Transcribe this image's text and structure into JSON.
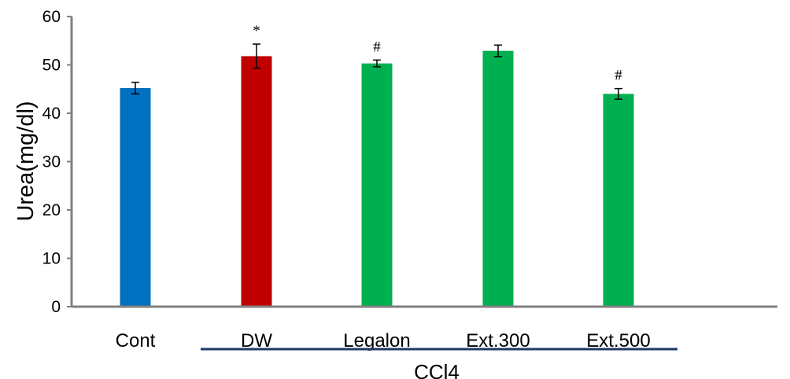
{
  "chart_data": {
    "type": "bar",
    "title": "",
    "xlabel": "",
    "ylabel": "Urea(mg/dl)",
    "ylim": [
      0,
      60
    ],
    "yticks": [
      0,
      10,
      20,
      30,
      40,
      50,
      60
    ],
    "grid": false,
    "legend": "none",
    "categories": [
      "Cont",
      "DW",
      "Legalon",
      "Ext.300",
      "Ext.500"
    ],
    "values": [
      45.2,
      51.8,
      50.3,
      52.9,
      44.0
    ],
    "errors": [
      1.2,
      2.5,
      0.7,
      1.2,
      1.1
    ],
    "annotations": [
      "",
      "*",
      "#",
      "",
      "#"
    ],
    "colors": [
      "#0070C0",
      "#C00000",
      "#00B050",
      "#00B050",
      "#00B050"
    ],
    "group": {
      "label": "CCl4",
      "members": [
        "DW",
        "Legalon",
        "Ext.300",
        "Ext.500"
      ],
      "line_color": "#1F3864"
    },
    "axis_color": "#808080"
  }
}
